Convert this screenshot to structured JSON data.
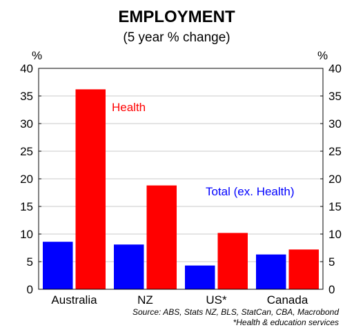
{
  "chart_data": {
    "type": "bar",
    "title": "EMPLOYMENT",
    "subtitle": "(5 year % change)",
    "y_unit_left": "%",
    "y_unit_right": "%",
    "categories": [
      "Australia",
      "NZ",
      "US*",
      "Canada"
    ],
    "series": [
      {
        "name": "Total (ex. Health)",
        "color": "#0000ff",
        "values": [
          8.6,
          8.1,
          4.3,
          6.3
        ]
      },
      {
        "name": "Health",
        "color": "#ff0000",
        "values": [
          36.2,
          18.8,
          10.2,
          7.2
        ]
      }
    ],
    "ylim": [
      0,
      40
    ],
    "yticks": [
      0,
      5,
      10,
      15,
      20,
      25,
      30,
      35,
      40
    ],
    "grid": true,
    "source": "Source: ABS, Stats NZ, BLS, StatCan, CBA, Macrobond",
    "footnote": "*Health & education services"
  }
}
